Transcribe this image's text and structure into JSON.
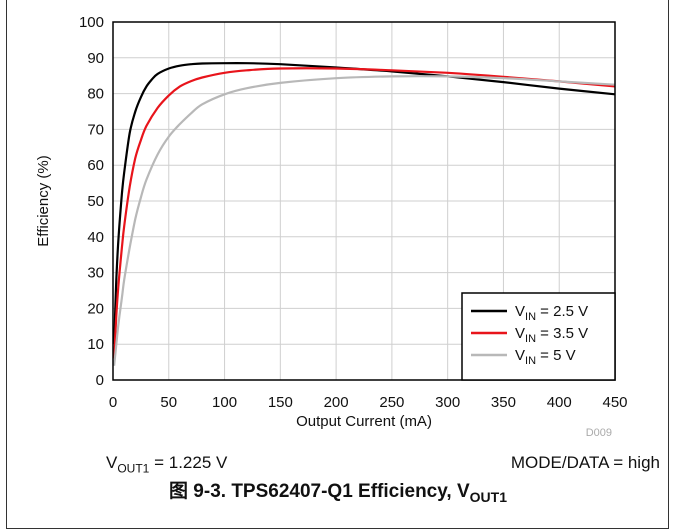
{
  "chart_data": {
    "type": "line",
    "title": "",
    "xlabel": "Output Current (mA)",
    "ylabel": "Efficiency (%)",
    "xlim": [
      0,
      450
    ],
    "ylim": [
      0,
      100
    ],
    "xticks": [
      0,
      50,
      100,
      150,
      200,
      250,
      300,
      350,
      400,
      450
    ],
    "yticks": [
      0,
      10,
      20,
      30,
      40,
      50,
      60,
      70,
      80,
      90,
      100
    ],
    "grid": true,
    "legend_position": "bottom-right",
    "watermark": "D009",
    "series": [
      {
        "name_main": "V",
        "name_sub": "IN",
        "name_rest": " = 2.5 V",
        "color": "#000000",
        "x": [
          1,
          3,
          5,
          8,
          10,
          15,
          20,
          25,
          30,
          35,
          40,
          50,
          60,
          70,
          80,
          100,
          120,
          150,
          200,
          250,
          300,
          350,
          400,
          450
        ],
        "y": [
          10,
          28,
          40,
          52,
          58,
          69,
          75,
          79,
          82,
          84,
          85.5,
          87,
          87.8,
          88.2,
          88.4,
          88.5,
          88.5,
          88.2,
          87.3,
          86.2,
          84.8,
          83.2,
          81.4,
          79.8
        ]
      },
      {
        "name_main": "V",
        "name_sub": "IN",
        "name_rest": " = 3.5 V",
        "color": "#e8141b",
        "x": [
          1,
          3,
          5,
          8,
          10,
          15,
          20,
          25,
          30,
          40,
          50,
          60,
          70,
          80,
          100,
          120,
          150,
          200,
          250,
          300,
          350,
          400,
          450
        ],
        "y": [
          6,
          18,
          27,
          37,
          43,
          54,
          62,
          67,
          71,
          76,
          79.5,
          82,
          83.5,
          84.5,
          85.8,
          86.5,
          87,
          87,
          86.5,
          85.8,
          84.7,
          83.4,
          82
        ]
      },
      {
        "name_main": "V",
        "name_sub": "IN",
        "name_rest": " = 5 V",
        "color": "#b8b8b8",
        "x": [
          1,
          3,
          5,
          8,
          10,
          15,
          20,
          25,
          30,
          40,
          50,
          60,
          70,
          80,
          100,
          120,
          150,
          200,
          250,
          300,
          350,
          400,
          450
        ],
        "y": [
          4,
          10,
          16,
          23,
          28,
          37,
          45,
          51,
          56,
          63,
          68,
          71.5,
          74.5,
          77,
          79.8,
          81.5,
          83,
          84.3,
          84.8,
          84.8,
          84.3,
          83.4,
          82.5
        ]
      }
    ]
  },
  "notes": {
    "vout_main": "V",
    "vout_sub": "OUT1",
    "vout_rest": " = 1.225 V",
    "mode": "MODE/DATA = high"
  },
  "caption": {
    "prefix": "图 9-3. TPS62407-Q1 Efficiency, V",
    "sub": "OUT1"
  }
}
